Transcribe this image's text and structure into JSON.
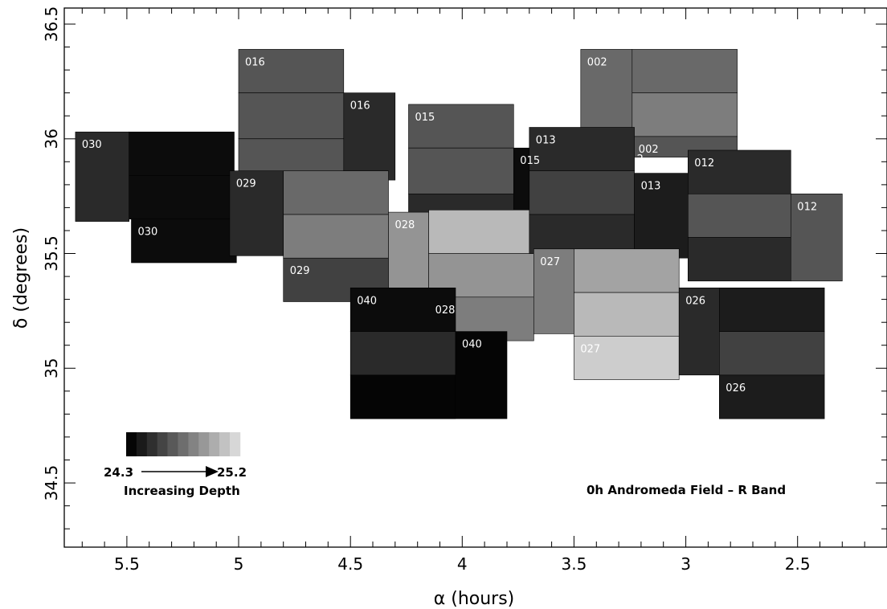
{
  "chart_data": {
    "type": "heatmap",
    "title": "",
    "xlabel": "α (hours)",
    "ylabel": "δ (degrees)",
    "xlim": [
      5.78,
      2.1
    ],
    "ylim": [
      34.22,
      36.57
    ],
    "x_ticks": [
      5.5,
      5,
      4.5,
      4,
      3.5,
      3,
      2.5
    ],
    "x_tick_labels": [
      "5.5",
      "5",
      "4.5",
      "4",
      "3.5",
      "3",
      "2.5"
    ],
    "y_ticks": [
      34.5,
      35,
      35.5,
      36,
      36.5
    ],
    "y_tick_labels": [
      "34.5",
      "35",
      "35.5",
      "36",
      "36.5"
    ],
    "annotation": "0h Andromeda Field – R Band",
    "legend": {
      "from_label": "24.3",
      "to_label": "25.2",
      "caption": "Increasing Depth",
      "shades": [
        "#050505",
        "#1a1a1a",
        "#2f2f2f",
        "#444444",
        "#595959",
        "#6e6e6e",
        "#838383",
        "#989898",
        "#adadad",
        "#c2c2c2",
        "#d7d7d7"
      ]
    },
    "fields": [
      {
        "label": "030",
        "cells": [
          {
            "ra": [
              5.73,
              5.49
            ],
            "dec": [
              35.64,
              36.03
            ],
            "depth": 24.45
          },
          {
            "ra": [
              5.49,
              5.02
            ],
            "dec": [
              35.84,
              36.03
            ],
            "depth": 24.33
          },
          {
            "ra": [
              5.49,
              5.02
            ],
            "dec": [
              35.65,
              35.84
            ],
            "depth": 24.33
          },
          {
            "ra": [
              5.48,
              5.01
            ],
            "dec": [
              35.46,
              35.65
            ],
            "depth": 24.33
          }
        ]
      },
      {
        "label": "016",
        "cells": [
          {
            "ra": [
              5.0,
              4.53
            ],
            "dec": [
              36.2,
              36.39
            ],
            "depth": 24.62
          },
          {
            "ra": [
              5.0,
              4.53
            ],
            "dec": [
              36.0,
              36.2
            ],
            "depth": 24.62
          },
          {
            "ra": [
              5.0,
              4.53
            ],
            "dec": [
              35.84,
              36.0
            ],
            "depth": 24.62
          },
          {
            "ra": [
              4.53,
              4.3
            ],
            "dec": [
              35.82,
              36.2
            ],
            "depth": 24.45
          }
        ]
      },
      {
        "label": "029",
        "cells": [
          {
            "ra": [
              5.04,
              4.8
            ],
            "dec": [
              35.49,
              35.86
            ],
            "depth": 24.45
          },
          {
            "ra": [
              4.8,
              4.33
            ],
            "dec": [
              35.67,
              35.86
            ],
            "depth": 24.7
          },
          {
            "ra": [
              4.8,
              4.33
            ],
            "dec": [
              35.48,
              35.67
            ],
            "depth": 24.78
          },
          {
            "ra": [
              4.8,
              4.33
            ],
            "dec": [
              35.29,
              35.48
            ],
            "depth": 24.54
          }
        ]
      },
      {
        "label": "015",
        "cells": [
          {
            "ra": [
              4.24,
              3.77
            ],
            "dec": [
              35.96,
              36.15
            ],
            "depth": 24.62
          },
          {
            "ra": [
              4.24,
              3.77
            ],
            "dec": [
              35.76,
              35.96
            ],
            "depth": 24.62
          },
          {
            "ra": [
              4.24,
              3.77
            ],
            "dec": [
              35.67,
              35.76
            ],
            "depth": 24.45
          },
          {
            "ra": [
              3.77,
              3.54
            ],
            "dec": [
              35.58,
              35.96
            ],
            "depth": 24.33
          }
        ]
      },
      {
        "label": "028",
        "cells": [
          {
            "ra": [
              4.33,
              4.15
            ],
            "dec": [
              35.35,
              35.68
            ],
            "depth": 24.87
          },
          {
            "ra": [
              4.15,
              3.68
            ],
            "dec": [
              35.5,
              35.69
            ],
            "depth": 25.02
          },
          {
            "ra": [
              4.15,
              3.68
            ],
            "dec": [
              35.31,
              35.5
            ],
            "depth": 24.87
          },
          {
            "ra": [
              4.15,
              3.68
            ],
            "dec": [
              35.12,
              35.31
            ],
            "depth": 24.78
          }
        ]
      },
      {
        "label": "040",
        "cells": [
          {
            "ra": [
              4.5,
              4.03
            ],
            "dec": [
              35.16,
              35.35
            ],
            "depth": 24.33
          },
          {
            "ra": [
              4.5,
              4.03
            ],
            "dec": [
              34.97,
              35.16
            ],
            "depth": 24.45
          },
          {
            "ra": [
              4.5,
              4.03
            ],
            "dec": [
              34.78,
              34.97
            ],
            "depth": 24.28
          },
          {
            "ra": [
              4.03,
              3.8
            ],
            "dec": [
              34.78,
              35.16
            ],
            "depth": 24.28
          }
        ]
      },
      {
        "label": "002",
        "cells": [
          {
            "ra": [
              3.47,
              3.24
            ],
            "dec": [
              35.96,
              36.39
            ],
            "depth": 24.7
          },
          {
            "ra": [
              3.24,
              2.77
            ],
            "dec": [
              36.2,
              36.39
            ],
            "depth": 24.7
          },
          {
            "ra": [
              3.24,
              2.77
            ],
            "dec": [
              36.01,
              36.2
            ],
            "depth": 24.78
          },
          {
            "ra": [
              3.24,
              2.77
            ],
            "dec": [
              35.92,
              36.01
            ],
            "depth": 24.62
          }
        ]
      },
      {
        "label": "013",
        "cells": [
          {
            "ra": [
              3.7,
              3.23
            ],
            "dec": [
              35.86,
              36.05
            ],
            "depth": 24.45
          },
          {
            "ra": [
              3.7,
              3.23
            ],
            "dec": [
              35.67,
              35.86
            ],
            "depth": 24.54
          },
          {
            "ra": [
              3.7,
              3.23
            ],
            "dec": [
              35.5,
              35.67
            ],
            "depth": 24.45
          },
          {
            "ra": [
              3.23,
              2.99
            ],
            "dec": [
              35.48,
              35.85
            ],
            "depth": 24.39
          }
        ]
      },
      {
        "label": "012",
        "cells": [
          {
            "ra": [
              2.99,
              2.53
            ],
            "dec": [
              35.76,
              35.95
            ],
            "depth": 24.45
          },
          {
            "ra": [
              2.99,
              2.53
            ],
            "dec": [
              35.57,
              35.76
            ],
            "depth": 24.62
          },
          {
            "ra": [
              2.99,
              2.53
            ],
            "dec": [
              35.38,
              35.57
            ],
            "depth": 24.45
          },
          {
            "ra": [
              2.53,
              2.3
            ],
            "dec": [
              35.38,
              35.76
            ],
            "depth": 24.62
          }
        ]
      },
      {
        "label": "027",
        "cells": [
          {
            "ra": [
              3.68,
              3.5
            ],
            "dec": [
              35.15,
              35.52
            ],
            "depth": 24.78
          },
          {
            "ra": [
              3.5,
              3.03
            ],
            "dec": [
              35.33,
              35.52
            ],
            "depth": 24.93
          },
          {
            "ra": [
              3.5,
              3.03
            ],
            "dec": [
              35.14,
              35.33
            ],
            "depth": 25.02
          },
          {
            "ra": [
              3.5,
              3.03
            ],
            "dec": [
              34.95,
              35.14
            ],
            "depth": 25.1
          }
        ]
      },
      {
        "label": "026",
        "cells": [
          {
            "ra": [
              3.03,
              2.85
            ],
            "dec": [
              34.97,
              35.35
            ],
            "depth": 24.45
          },
          {
            "ra": [
              2.85,
              2.38
            ],
            "dec": [
              35.16,
              35.35
            ],
            "depth": 24.39
          },
          {
            "ra": [
              2.85,
              2.38
            ],
            "dec": [
              34.97,
              35.16
            ],
            "depth": 24.54
          },
          {
            "ra": [
              2.85,
              2.38
            ],
            "dec": [
              34.78,
              34.97
            ],
            "depth": 24.39
          }
        ]
      }
    ],
    "overlap_fragment_label": "2"
  }
}
